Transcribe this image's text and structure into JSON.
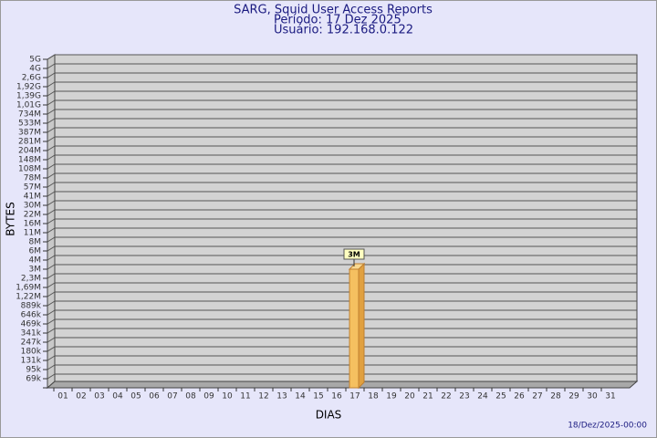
{
  "chart_data": {
    "type": "bar",
    "title": "SARG, Squid User Access Reports",
    "subtitle": [
      "Período: 17 Dez 2025",
      "Usuário: 192.168.0.122"
    ],
    "x_label": "DIAS",
    "y_label": "BYTES",
    "footer": "18/Dez/2025-00:00",
    "categories": [
      "01",
      "02",
      "03",
      "04",
      "05",
      "06",
      "07",
      "08",
      "09",
      "10",
      "11",
      "12",
      "13",
      "14",
      "15",
      "16",
      "17",
      "18",
      "19",
      "20",
      "21",
      "22",
      "23",
      "24",
      "25",
      "26",
      "27",
      "28",
      "29",
      "30",
      "31"
    ],
    "values": [
      null,
      null,
      null,
      null,
      null,
      null,
      null,
      null,
      null,
      null,
      null,
      null,
      null,
      null,
      null,
      null,
      3000000,
      null,
      null,
      null,
      null,
      null,
      null,
      null,
      null,
      null,
      null,
      null,
      null,
      null,
      null
    ],
    "value_labels": [
      null,
      null,
      null,
      null,
      null,
      null,
      null,
      null,
      null,
      null,
      null,
      null,
      null,
      null,
      null,
      null,
      "3M",
      null,
      null,
      null,
      null,
      null,
      null,
      null,
      null,
      null,
      null,
      null,
      null,
      null,
      null
    ],
    "color": "#f5c060",
    "ylim": [
      0,
      5000000000
    ],
    "yticks": [
      {
        "value": 69000,
        "label": "69k"
      },
      {
        "value": 95000,
        "label": "95k"
      },
      {
        "value": 131000,
        "label": "131k"
      },
      {
        "value": 180000,
        "label": "180k"
      },
      {
        "value": 247000,
        "label": "247k"
      },
      {
        "value": 341000,
        "label": "341k"
      },
      {
        "value": 469000,
        "label": "469k"
      },
      {
        "value": 646000,
        "label": "646k"
      },
      {
        "value": 889000,
        "label": "889k"
      },
      {
        "value": 1220000,
        "label": "1,22M"
      },
      {
        "value": 1690000,
        "label": "1,69M"
      },
      {
        "value": 2300000,
        "label": "2,3M"
      },
      {
        "value": 3000000,
        "label": "3M"
      },
      {
        "value": 4000000,
        "label": "4M"
      },
      {
        "value": 6000000,
        "label": "6M"
      },
      {
        "value": 8000000,
        "label": "8M"
      },
      {
        "value": 11000000,
        "label": "11M"
      },
      {
        "value": 16000000,
        "label": "16M"
      },
      {
        "value": 22000000,
        "label": "22M"
      },
      {
        "value": 30000000,
        "label": "30M"
      },
      {
        "value": 41000000,
        "label": "41M"
      },
      {
        "value": 57000000,
        "label": "57M"
      },
      {
        "value": 78000000,
        "label": "78M"
      },
      {
        "value": 108000000,
        "label": "108M"
      },
      {
        "value": 148000000,
        "label": "148M"
      },
      {
        "value": 204000000,
        "label": "204M"
      },
      {
        "value": 281000000,
        "label": "281M"
      },
      {
        "value": 387000000,
        "label": "387M"
      },
      {
        "value": 533000000,
        "label": "533M"
      },
      {
        "value": 734000000,
        "label": "734M"
      },
      {
        "value": 1010000000,
        "label": "1,01G"
      },
      {
        "value": 1390000000,
        "label": "1,39G"
      },
      {
        "value": 1920000000,
        "label": "1,92G"
      },
      {
        "value": 2600000000,
        "label": "2,6G"
      },
      {
        "value": 4000000000,
        "label": "4G"
      },
      {
        "value": 5000000000,
        "label": "5G"
      }
    ],
    "grid": true
  }
}
